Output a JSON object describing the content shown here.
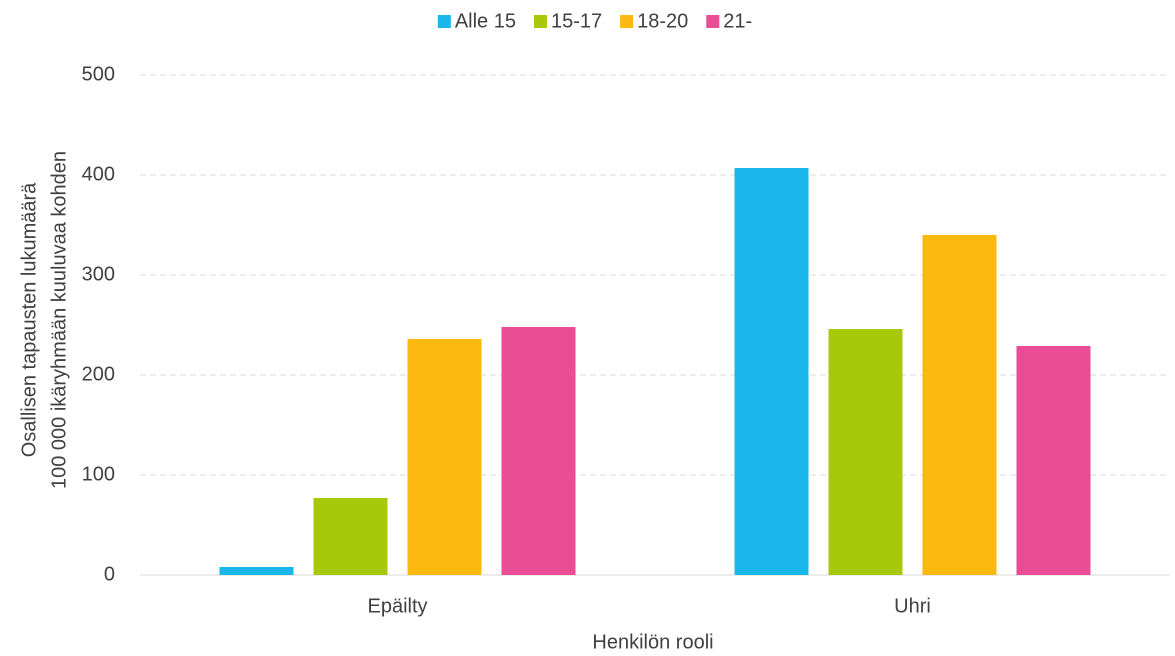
{
  "chart_data": {
    "type": "bar",
    "y_label": [
      "Osallisen tapausten lukumäärä",
      "100 000 ikäryhmään kuuluvaa kohden"
    ],
    "x_label": "Henkilön rooli",
    "categories": [
      "Epäilty",
      "Uhri"
    ],
    "series": [
      {
        "name": "Alle 15",
        "color": "#1ab7ea",
        "values": [
          8,
          407
        ]
      },
      {
        "name": "15-17",
        "color": "#a8c90a",
        "values": [
          77,
          246
        ]
      },
      {
        "name": "18-20",
        "color": "#fbb80f",
        "values": [
          236,
          340
        ]
      },
      {
        "name": "21-",
        "color": "#ea4c95",
        "values": [
          248,
          229
        ]
      }
    ],
    "ylim": [
      0,
      500
    ],
    "yticks": [
      0,
      100,
      200,
      300,
      400,
      500
    ],
    "grid": true,
    "legend": "top"
  }
}
